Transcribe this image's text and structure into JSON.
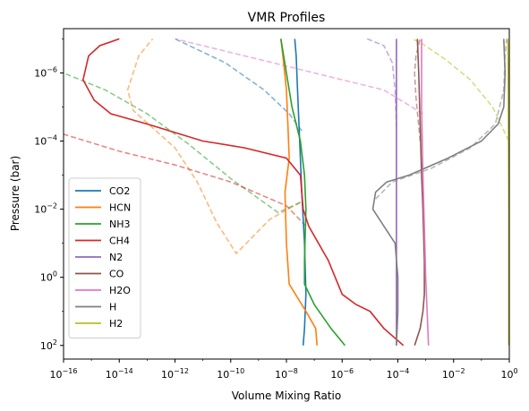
{
  "chart_data": {
    "type": "line",
    "title": "VMR Profiles",
    "xlabel": "Volume Mixing Ratio",
    "ylabel": "Pressure (bar)",
    "xscale": "log",
    "yscale": "log",
    "xlim_exp": [
      -16,
      0
    ],
    "ylim_exp": [
      2.4,
      -7.3
    ],
    "y_inverted": true,
    "grid": false,
    "legend_position": "lower left",
    "x_tick_exponents": [
      -16,
      -14,
      -12,
      -10,
      -8,
      -6,
      -4,
      -2,
      0
    ],
    "x_tick_labels": [
      {
        "base": "10",
        "exp": "−16"
      },
      {
        "base": "10",
        "exp": "−14"
      },
      {
        "base": "10",
        "exp": "−12"
      },
      {
        "base": "10",
        "exp": "−10"
      },
      {
        "base": "10",
        "exp": "−8"
      },
      {
        "base": "10",
        "exp": "−6"
      },
      {
        "base": "10",
        "exp": "−4"
      },
      {
        "base": "10",
        "exp": "−2"
      },
      {
        "base": "10",
        "exp": "0"
      }
    ],
    "y_tick_exponents": [
      2,
      0,
      -2,
      -4,
      -6
    ],
    "y_tick_labels": [
      {
        "base": "10",
        "exp": "2"
      },
      {
        "base": "10",
        "exp": "0"
      },
      {
        "base": "10",
        "exp": "−2"
      },
      {
        "base": "10",
        "exp": "−4"
      },
      {
        "base": "10",
        "exp": "−6"
      }
    ],
    "series": [
      {
        "name": "CO2",
        "color": "#1f77b4",
        "solid": [
          [
            -7.4,
            2
          ],
          [
            -7.35,
            1.5
          ],
          [
            -7.3,
            0.5
          ],
          [
            -7.35,
            -1
          ],
          [
            -7.45,
            -2.5
          ],
          [
            -7.5,
            -3.5
          ],
          [
            -7.55,
            -4.5
          ],
          [
            -7.6,
            -5.5
          ],
          [
            -7.65,
            -6.5
          ],
          [
            -7.7,
            -7
          ]
        ],
        "dashed": [
          [
            -7.45,
            -4.3
          ],
          [
            -7.9,
            -4.8
          ],
          [
            -8.8,
            -5.5
          ],
          [
            -10.2,
            -6.3
          ],
          [
            -12.0,
            -7
          ]
        ]
      },
      {
        "name": "HCN",
        "color": "#ff7f0e",
        "solid": [
          [
            -6.9,
            2
          ],
          [
            -6.95,
            1.5
          ],
          [
            -7.3,
            1
          ],
          [
            -7.9,
            0.2
          ],
          [
            -8.0,
            -1
          ],
          [
            -8.05,
            -2.5
          ],
          [
            -7.9,
            -3.5
          ],
          [
            -7.95,
            -4.5
          ],
          [
            -8.0,
            -5.5
          ],
          [
            -8.1,
            -6.3
          ],
          [
            -8.2,
            -7
          ]
        ],
        "dashed": [
          [
            -7.5,
            -2.2
          ],
          [
            -8.6,
            -1.7
          ],
          [
            -9.8,
            -0.7
          ],
          [
            -10.5,
            -1.6
          ],
          [
            -11.2,
            -2.8
          ],
          [
            -12.0,
            -3.8
          ],
          [
            -13.5,
            -4.9
          ],
          [
            -13.7,
            -5.5
          ],
          [
            -13.3,
            -6.5
          ],
          [
            -12.8,
            -7
          ]
        ]
      },
      {
        "name": "NH3",
        "color": "#2ca02c",
        "solid": [
          [
            -5.9,
            2
          ],
          [
            -6.4,
            1.5
          ],
          [
            -7.0,
            0.8
          ],
          [
            -7.35,
            0.2
          ],
          [
            -7.35,
            -0.5
          ],
          [
            -7.3,
            -2.0
          ],
          [
            -7.35,
            -3.0
          ],
          [
            -7.5,
            -4.0
          ],
          [
            -7.8,
            -5.0
          ],
          [
            -8.0,
            -6.0
          ],
          [
            -8.1,
            -6.5
          ],
          [
            -8.2,
            -7
          ]
        ],
        "dashed": [
          [
            -7.5,
            -2.2
          ],
          [
            -8.3,
            -1.9
          ],
          [
            -10.0,
            -2.9
          ],
          [
            -11.5,
            -3.9
          ],
          [
            -13.0,
            -4.8
          ],
          [
            -14.5,
            -5.5
          ],
          [
            -16.0,
            -6.0
          ]
        ]
      },
      {
        "name": "CH4",
        "color": "#d62728",
        "solid": [
          [
            -3.8,
            2
          ],
          [
            -4.5,
            1.5
          ],
          [
            -5.0,
            1.0
          ],
          [
            -5.5,
            0.8
          ],
          [
            -6.0,
            0.5
          ],
          [
            -6.5,
            -0.5
          ],
          [
            -7.2,
            -1.5
          ],
          [
            -7.4,
            -2.0
          ],
          [
            -7.5,
            -3.0
          ],
          [
            -8.0,
            -3.5
          ],
          [
            -9.5,
            -3.8
          ],
          [
            -11.0,
            -4.0
          ],
          [
            -13.0,
            -4.5
          ],
          [
            -14.3,
            -4.8
          ],
          [
            -14.9,
            -5.2
          ],
          [
            -15.3,
            -5.8
          ],
          [
            -15.1,
            -6.5
          ],
          [
            -14.7,
            -6.8
          ],
          [
            -14.0,
            -7
          ]
        ],
        "dashed": [
          [
            -7.3,
            -1.5
          ],
          [
            -8.0,
            -2.1
          ],
          [
            -10.0,
            -2.8
          ],
          [
            -12.0,
            -3.3
          ],
          [
            -14.0,
            -3.7
          ],
          [
            -16.0,
            -4.2
          ]
        ]
      },
      {
        "name": "N2",
        "color": "#9467bd",
        "solid": [
          [
            -4.05,
            2
          ],
          [
            -4.05,
            1.0
          ],
          [
            -4.05,
            -1.0
          ],
          [
            -4.05,
            -3.0
          ],
          [
            -4.05,
            -5.0
          ],
          [
            -4.05,
            -7
          ]
        ],
        "dashed": [
          [
            -4.05,
            -4.4
          ],
          [
            -4.1,
            -5.5
          ],
          [
            -4.2,
            -6.3
          ],
          [
            -4.5,
            -6.8
          ],
          [
            -5.1,
            -7
          ]
        ]
      },
      {
        "name": "CO",
        "color": "#8c564b",
        "solid": [
          [
            -3.4,
            2
          ],
          [
            -3.2,
            1.5
          ],
          [
            -3.1,
            1.0
          ],
          [
            -3.05,
            0.5
          ],
          [
            -3.05,
            -0.5
          ],
          [
            -3.1,
            -2.0
          ],
          [
            -3.15,
            -3.0
          ],
          [
            -3.2,
            -4.5
          ],
          [
            -3.25,
            -6.0
          ],
          [
            -3.3,
            -7
          ]
        ],
        "dashed": [
          [
            -3.2,
            -4.0
          ],
          [
            -3.35,
            -5.3
          ],
          [
            -3.4,
            -6.0
          ],
          [
            -3.35,
            -6.5
          ],
          [
            -3.2,
            -7
          ]
        ]
      },
      {
        "name": "H2O",
        "color": "#e377c2",
        "solid": [
          [
            -2.9,
            2
          ],
          [
            -2.95,
            1.0
          ],
          [
            -3.0,
            0.0
          ],
          [
            -3.05,
            -1.5
          ],
          [
            -3.1,
            -3.0
          ],
          [
            -3.15,
            -5.0
          ],
          [
            -3.15,
            -7
          ]
        ],
        "dashed": [
          [
            -3.1,
            -4.8
          ],
          [
            -4.5,
            -5.5
          ],
          [
            -6.5,
            -5.9
          ],
          [
            -8.5,
            -6.3
          ],
          [
            -10.5,
            -6.7
          ],
          [
            -12.0,
            -7
          ]
        ]
      },
      {
        "name": "H",
        "color": "#7f7f7f",
        "solid": [
          [
            -4.05,
            2
          ],
          [
            -4.0,
            1.0
          ],
          [
            -4.0,
            0.0
          ],
          [
            -4.1,
            -1.0
          ],
          [
            -4.5,
            -1.5
          ],
          [
            -4.9,
            -2.0
          ],
          [
            -4.8,
            -2.5
          ],
          [
            -4.4,
            -2.8
          ],
          [
            -3.6,
            -3.0
          ],
          [
            -2.2,
            -3.5
          ],
          [
            -1.0,
            -4.0
          ],
          [
            -0.4,
            -4.5
          ],
          [
            -0.2,
            -5.0
          ],
          [
            -0.15,
            -6.0
          ],
          [
            -0.2,
            -7
          ]
        ],
        "dashed": [
          [
            -4.8,
            -2.3
          ],
          [
            -4.2,
            -2.8
          ],
          [
            -2.8,
            -3.2
          ],
          [
            -1.4,
            -3.8
          ],
          [
            -0.5,
            -4.5
          ],
          [
            -0.2,
            -5.5
          ],
          [
            -0.15,
            -6.5
          ],
          [
            -0.1,
            -7
          ]
        ]
      },
      {
        "name": "H2",
        "color": "#bcbd22",
        "solid": [
          [
            -0.02,
            2
          ],
          [
            -0.02,
            0.0
          ],
          [
            -0.02,
            -2.0
          ],
          [
            -0.03,
            -4.0
          ],
          [
            -0.04,
            -6.0
          ],
          [
            -0.05,
            -7
          ]
        ],
        "dashed": [
          [
            -0.02,
            -4.0
          ],
          [
            -0.6,
            -5.0
          ],
          [
            -1.4,
            -5.8
          ],
          [
            -2.3,
            -6.4
          ],
          [
            -3.2,
            -6.9
          ],
          [
            -3.5,
            -7
          ]
        ]
      }
    ]
  }
}
